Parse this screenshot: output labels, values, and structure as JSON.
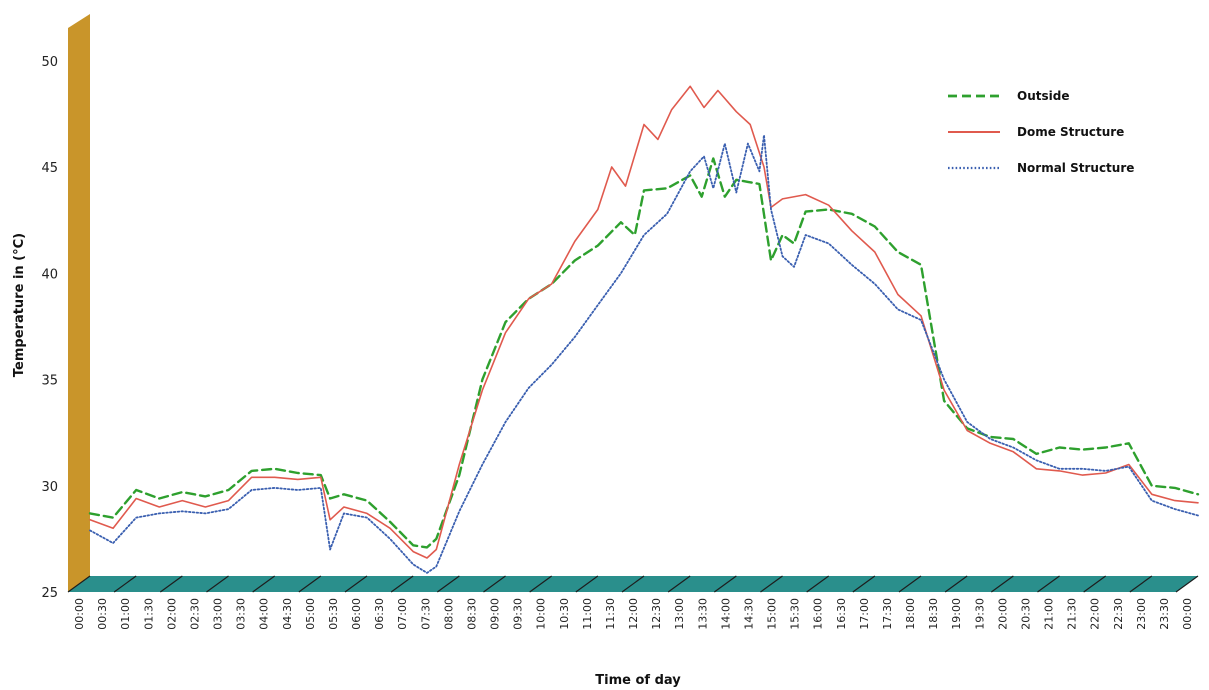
{
  "chart_data": {
    "type": "line",
    "xlabel": "Time of day",
    "ylabel": "Temperature in (°C)",
    "ylim": [
      25,
      52
    ],
    "yticks": [
      25,
      30,
      35,
      40,
      45,
      50
    ],
    "x_tick_labels": [
      "00:00",
      "00:30",
      "01:00",
      "01:30",
      "02:00",
      "02:30",
      "03:00",
      "03:30",
      "04:00",
      "04:30",
      "05:00",
      "05:30",
      "06:00",
      "06:30",
      "07:00",
      "07:30",
      "08:00",
      "08:30",
      "09:00",
      "09:30",
      "10:00",
      "10:30",
      "11:00",
      "11:30",
      "12:00",
      "12:30",
      "13:00",
      "13:30",
      "14:00",
      "14:30",
      "15:00",
      "15:30",
      "16:00",
      "16:30",
      "17:00",
      "17:30",
      "18:00",
      "18:30",
      "19:00",
      "19:30",
      "20:00",
      "20:30",
      "21:00",
      "21:30",
      "22:00",
      "22:30",
      "23:00",
      "23:30",
      "00:00"
    ],
    "legend_position": "top-right",
    "colors": {
      "outside": "#2ea02e",
      "dome": "#e05a4e",
      "normal": "#3a5fb0",
      "wall": "#c9952a",
      "floor": "#2a8f8c"
    },
    "series": [
      {
        "name": "Outside",
        "style": "dashed",
        "points": [
          [
            0,
            28.7
          ],
          [
            0.5,
            28.5
          ],
          [
            1,
            29.8
          ],
          [
            1.5,
            29.4
          ],
          [
            2,
            29.7
          ],
          [
            2.5,
            29.5
          ],
          [
            3,
            29.8
          ],
          [
            3.5,
            30.7
          ],
          [
            4,
            30.8
          ],
          [
            4.5,
            30.6
          ],
          [
            5,
            30.5
          ],
          [
            5.2,
            29.4
          ],
          [
            5.5,
            29.6
          ],
          [
            6,
            29.3
          ],
          [
            6.5,
            28.3
          ],
          [
            7,
            27.2
          ],
          [
            7.3,
            27.1
          ],
          [
            7.5,
            27.5
          ],
          [
            8,
            30.5
          ],
          [
            8.5,
            35.0
          ],
          [
            9,
            37.7
          ],
          [
            9.5,
            38.8
          ],
          [
            10,
            39.5
          ],
          [
            10.5,
            40.6
          ],
          [
            11,
            41.3
          ],
          [
            11.5,
            42.4
          ],
          [
            11.8,
            41.8
          ],
          [
            12,
            43.9
          ],
          [
            12.5,
            44.0
          ],
          [
            13,
            44.6
          ],
          [
            13.25,
            43.6
          ],
          [
            13.5,
            45.4
          ],
          [
            13.75,
            43.6
          ],
          [
            14,
            44.4
          ],
          [
            14.25,
            44.3
          ],
          [
            14.5,
            44.2
          ],
          [
            14.75,
            40.6
          ],
          [
            15,
            41.8
          ],
          [
            15.25,
            41.4
          ],
          [
            15.5,
            42.9
          ],
          [
            16,
            43.0
          ],
          [
            16.5,
            42.8
          ],
          [
            17,
            42.2
          ],
          [
            17.5,
            41.0
          ],
          [
            18,
            40.4
          ],
          [
            18.5,
            34.0
          ],
          [
            19,
            32.7
          ],
          [
            19.5,
            32.3
          ],
          [
            20,
            32.2
          ],
          [
            20.5,
            31.5
          ],
          [
            21,
            31.8
          ],
          [
            21.5,
            31.7
          ],
          [
            22,
            31.8
          ],
          [
            22.5,
            32.0
          ],
          [
            23,
            30.0
          ],
          [
            23.5,
            29.9
          ],
          [
            24,
            29.6
          ]
        ]
      },
      {
        "name": "Dome Structure",
        "style": "solid",
        "points": [
          [
            0,
            28.4
          ],
          [
            0.5,
            28.0
          ],
          [
            1,
            29.4
          ],
          [
            1.5,
            29.0
          ],
          [
            2,
            29.3
          ],
          [
            2.5,
            29.0
          ],
          [
            3,
            29.3
          ],
          [
            3.5,
            30.4
          ],
          [
            4,
            30.4
          ],
          [
            4.5,
            30.3
          ],
          [
            5,
            30.4
          ],
          [
            5.2,
            28.4
          ],
          [
            5.5,
            29.0
          ],
          [
            6,
            28.7
          ],
          [
            6.5,
            28.0
          ],
          [
            7,
            26.9
          ],
          [
            7.3,
            26.6
          ],
          [
            7.5,
            27.0
          ],
          [
            8,
            31.0
          ],
          [
            8.5,
            34.5
          ],
          [
            9,
            37.2
          ],
          [
            9.5,
            38.8
          ],
          [
            10,
            39.5
          ],
          [
            10.5,
            41.5
          ],
          [
            11,
            43.0
          ],
          [
            11.3,
            45.0
          ],
          [
            11.6,
            44.1
          ],
          [
            12,
            47.0
          ],
          [
            12.3,
            46.3
          ],
          [
            12.6,
            47.7
          ],
          [
            13,
            48.8
          ],
          [
            13.3,
            47.8
          ],
          [
            13.6,
            48.6
          ],
          [
            14,
            47.6
          ],
          [
            14.3,
            47.0
          ],
          [
            14.6,
            45.0
          ],
          [
            14.75,
            43.1
          ],
          [
            15,
            43.5
          ],
          [
            15.5,
            43.7
          ],
          [
            16,
            43.2
          ],
          [
            16.5,
            42.0
          ],
          [
            17,
            41.0
          ],
          [
            17.5,
            39.0
          ],
          [
            18,
            38.0
          ],
          [
            18.5,
            34.5
          ],
          [
            19,
            32.6
          ],
          [
            19.5,
            32.0
          ],
          [
            20,
            31.6
          ],
          [
            20.5,
            30.8
          ],
          [
            21,
            30.7
          ],
          [
            21.5,
            30.5
          ],
          [
            22,
            30.6
          ],
          [
            22.5,
            31.0
          ],
          [
            23,
            29.6
          ],
          [
            23.5,
            29.3
          ],
          [
            24,
            29.2
          ]
        ]
      },
      {
        "name": "Normal Structure",
        "style": "dotted",
        "points": [
          [
            0,
            27.9
          ],
          [
            0.5,
            27.3
          ],
          [
            1,
            28.5
          ],
          [
            1.5,
            28.7
          ],
          [
            2,
            28.8
          ],
          [
            2.5,
            28.7
          ],
          [
            3,
            28.9
          ],
          [
            3.5,
            29.8
          ],
          [
            4,
            29.9
          ],
          [
            4.5,
            29.8
          ],
          [
            5,
            29.9
          ],
          [
            5.2,
            27.0
          ],
          [
            5.5,
            28.7
          ],
          [
            6,
            28.5
          ],
          [
            6.5,
            27.5
          ],
          [
            7,
            26.3
          ],
          [
            7.3,
            25.9
          ],
          [
            7.5,
            26.2
          ],
          [
            8,
            28.8
          ],
          [
            8.5,
            31.0
          ],
          [
            9,
            33.0
          ],
          [
            9.5,
            34.6
          ],
          [
            10,
            35.7
          ],
          [
            10.5,
            37.0
          ],
          [
            11,
            38.5
          ],
          [
            11.5,
            40.0
          ],
          [
            12,
            41.8
          ],
          [
            12.5,
            42.8
          ],
          [
            13,
            44.8
          ],
          [
            13.3,
            45.5
          ],
          [
            13.5,
            44.0
          ],
          [
            13.75,
            46.1
          ],
          [
            14,
            43.8
          ],
          [
            14.25,
            46.1
          ],
          [
            14.5,
            44.8
          ],
          [
            14.6,
            46.5
          ],
          [
            14.75,
            43.0
          ],
          [
            15,
            40.8
          ],
          [
            15.25,
            40.3
          ],
          [
            15.5,
            41.8
          ],
          [
            16,
            41.4
          ],
          [
            16.5,
            40.4
          ],
          [
            17,
            39.5
          ],
          [
            17.5,
            38.3
          ],
          [
            18,
            37.8
          ],
          [
            18.5,
            35.0
          ],
          [
            19,
            33.0
          ],
          [
            19.5,
            32.2
          ],
          [
            20,
            31.8
          ],
          [
            20.5,
            31.2
          ],
          [
            21,
            30.8
          ],
          [
            21.5,
            30.8
          ],
          [
            22,
            30.7
          ],
          [
            22.5,
            30.9
          ],
          [
            23,
            29.3
          ],
          [
            23.5,
            28.9
          ],
          [
            24,
            28.6
          ]
        ]
      }
    ]
  }
}
